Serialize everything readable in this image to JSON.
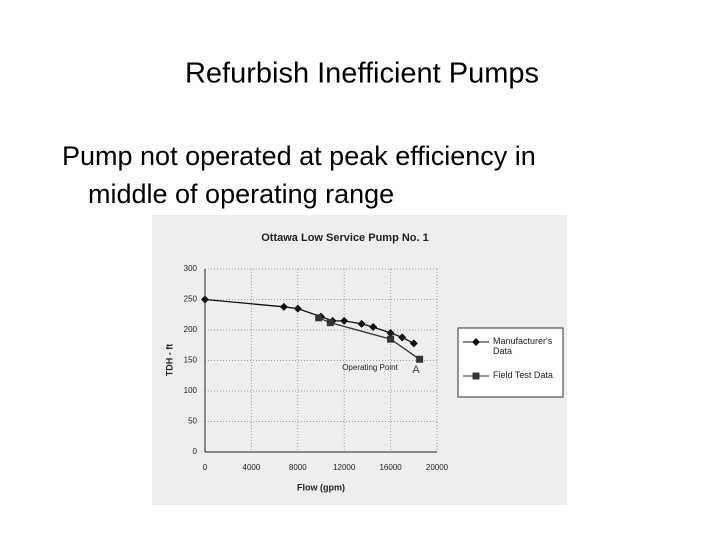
{
  "slide": {
    "title": "Refurbish Inefficient Pumps",
    "bullet": "Pump not operated at peak efficiency in",
    "bullet_cont": "middle of operating range"
  },
  "chart_data": {
    "type": "line",
    "title": "Ottawa Low Service Pump No. 1",
    "x_label": "Flow (gpm)",
    "y_label": "TDH - ft",
    "xlim": [
      0,
      20000
    ],
    "xticks": [
      0,
      4000,
      8000,
      12000,
      16000,
      20000
    ],
    "ylim": [
      0,
      300
    ],
    "yticks": [
      0,
      50,
      100,
      150,
      200,
      250,
      300
    ],
    "grid": true,
    "series": [
      {
        "name": "Manufacturer's Data",
        "color": "#111111",
        "marker": "diamond",
        "x": [
          0,
          6800,
          8000,
          10000,
          11000,
          12000,
          13500,
          14500,
          16000,
          17000,
          18000
        ],
        "values": [
          250,
          238,
          235,
          222,
          215,
          215,
          210,
          205,
          195,
          188,
          178
        ]
      },
      {
        "name": "Field Test Data",
        "color": "#333333",
        "marker": "square",
        "x": [
          9800,
          10800,
          16000,
          18500
        ],
        "values": [
          220,
          212,
          185,
          152
        ]
      }
    ],
    "annotations": [
      "Operating Point",
      "A"
    ]
  }
}
